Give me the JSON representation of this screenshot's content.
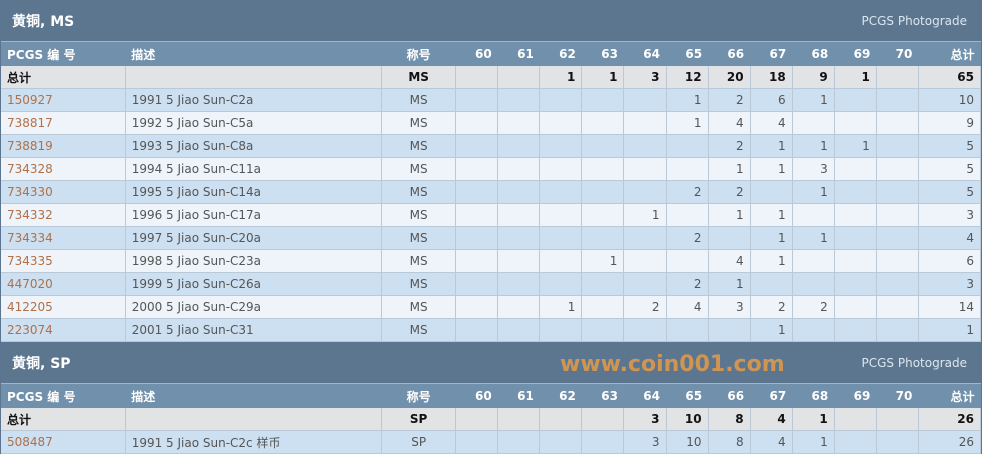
{
  "columns": {
    "id": "PCGS 编 号",
    "desc": "描述",
    "designation": "称号",
    "grades": [
      "60",
      "61",
      "62",
      "63",
      "64",
      "65",
      "66",
      "67",
      "68",
      "69",
      "70"
    ],
    "total": "总计"
  },
  "sections": [
    {
      "title": "黄铜, MS",
      "subtitle": "PCGS Photograde",
      "total_row": {
        "label": "总计",
        "designation": "MS",
        "grades": [
          "",
          "",
          "1",
          "1",
          "3",
          "12",
          "20",
          "18",
          "9",
          "1",
          ""
        ],
        "total": "65"
      },
      "rows": [
        {
          "id": "150927",
          "desc": "1991 5 Jiao Sun-C2a",
          "designation": "MS",
          "grades": [
            "",
            "",
            "",
            "",
            "",
            "1",
            "2",
            "6",
            "1",
            "",
            ""
          ],
          "total": "10"
        },
        {
          "id": "738817",
          "desc": "1992 5 Jiao Sun-C5a",
          "designation": "MS",
          "grades": [
            "",
            "",
            "",
            "",
            "",
            "1",
            "4",
            "4",
            "",
            "",
            ""
          ],
          "total": "9"
        },
        {
          "id": "738819",
          "desc": "1993 5 Jiao Sun-C8a",
          "designation": "MS",
          "grades": [
            "",
            "",
            "",
            "",
            "",
            "",
            "2",
            "1",
            "1",
            "1",
            ""
          ],
          "total": "5"
        },
        {
          "id": "734328",
          "desc": "1994 5 Jiao Sun-C11a",
          "designation": "MS",
          "grades": [
            "",
            "",
            "",
            "",
            "",
            "",
            "1",
            "1",
            "3",
            "",
            ""
          ],
          "total": "5"
        },
        {
          "id": "734330",
          "desc": "1995 5 Jiao Sun-C14a",
          "designation": "MS",
          "grades": [
            "",
            "",
            "",
            "",
            "",
            "2",
            "2",
            "",
            "1",
            "",
            ""
          ],
          "total": "5"
        },
        {
          "id": "734332",
          "desc": "1996 5 Jiao Sun-C17a",
          "designation": "MS",
          "grades": [
            "",
            "",
            "",
            "",
            "1",
            "",
            "1",
            "1",
            "",
            "",
            ""
          ],
          "total": "3"
        },
        {
          "id": "734334",
          "desc": "1997 5 Jiao Sun-C20a",
          "designation": "MS",
          "grades": [
            "",
            "",
            "",
            "",
            "",
            "2",
            "",
            "1",
            "1",
            "",
            ""
          ],
          "total": "4"
        },
        {
          "id": "734335",
          "desc": "1998 5 Jiao Sun-C23a",
          "designation": "MS",
          "grades": [
            "",
            "",
            "",
            "1",
            "",
            "",
            "4",
            "1",
            "",
            "",
            ""
          ],
          "total": "6"
        },
        {
          "id": "447020",
          "desc": "1999 5 Jiao Sun-C26a",
          "designation": "MS",
          "grades": [
            "",
            "",
            "",
            "",
            "",
            "2",
            "1",
            "",
            "",
            "",
            ""
          ],
          "total": "3"
        },
        {
          "id": "412205",
          "desc": "2000 5 Jiao Sun-C29a",
          "designation": "MS",
          "grades": [
            "",
            "",
            "1",
            "",
            "2",
            "4",
            "3",
            "2",
            "2",
            "",
            ""
          ],
          "total": "14"
        },
        {
          "id": "223074",
          "desc": "2001 5 Jiao Sun-C31",
          "designation": "MS",
          "grades": [
            "",
            "",
            "",
            "",
            "",
            "",
            "",
            "1",
            "",
            "",
            ""
          ],
          "total": "1"
        }
      ]
    },
    {
      "title": "黄铜, SP",
      "subtitle": "PCGS Photograde",
      "total_row": {
        "label": "总计",
        "designation": "SP",
        "grades": [
          "",
          "",
          "",
          "",
          "3",
          "10",
          "8",
          "4",
          "1",
          "",
          ""
        ],
        "total": "26"
      },
      "rows": [
        {
          "id": "508487",
          "desc": "1991 5 Jiao Sun-C2c 样币",
          "designation": "SP",
          "grades": [
            "",
            "",
            "",
            "",
            "3",
            "10",
            "8",
            "4",
            "1",
            "",
            ""
          ],
          "total": "26"
        }
      ]
    }
  ],
  "watermark": "www.coin001.com"
}
